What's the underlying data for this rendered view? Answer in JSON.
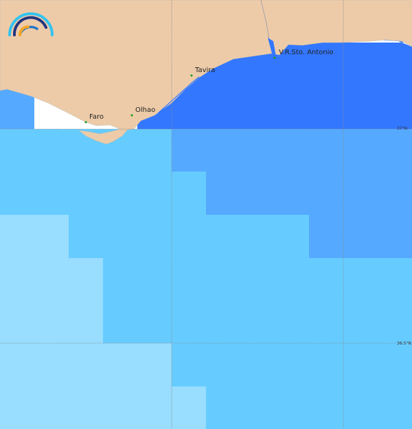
{
  "map": {
    "colors": {
      "land": "#EDCBA9",
      "coastal_dark": "#3377FF",
      "zone_mid": "#55AAFF",
      "zone_light": "#66CCFF",
      "zone_lightest": "#99DDFF",
      "no_data": "#FFFFFF",
      "city_marker": "#119911",
      "grid": "#888888"
    },
    "places": [
      {
        "name": "Faro"
      },
      {
        "name": "Olhao"
      },
      {
        "name": "Tavira"
      },
      {
        "name": "V.R.Sto. Antonio"
      }
    ],
    "latitude_labels": [
      "37°N",
      "36.5°N"
    ],
    "logo_icon": "rainbow-arcs-logo"
  }
}
